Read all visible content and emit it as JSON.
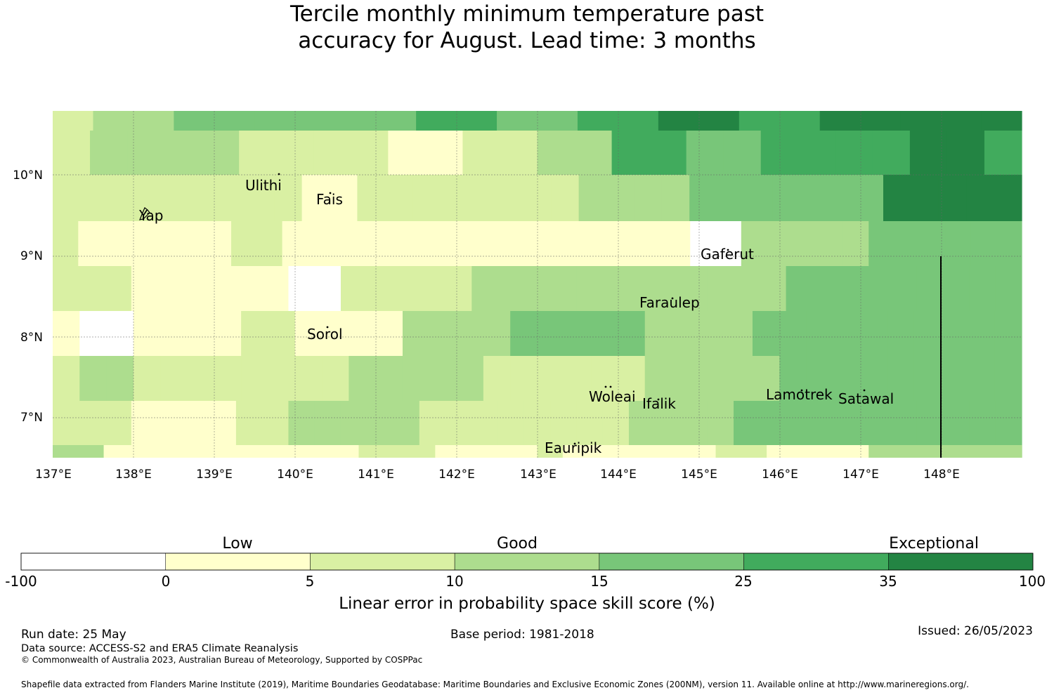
{
  "title": {
    "line1": "Tercile monthly minimum temperature past",
    "line2": "accuracy for August. Lead time: 3 months"
  },
  "map": {
    "lat_ticks": [
      "10°N",
      "9°N",
      "8°N",
      "7°N"
    ],
    "lon_ticks": [
      "137°E",
      "138°E",
      "139°E",
      "140°E",
      "141°E",
      "142°E",
      "143°E",
      "144°E",
      "145°E",
      "146°E",
      "147°E",
      "148°E"
    ],
    "places": [
      "Ulithi",
      "Fais",
      "Yap",
      "Gaferut",
      "Faraulep",
      "Sorol",
      "Woleai",
      "Ifalik",
      "Lamotrek",
      "Satawal",
      "Eauripik"
    ],
    "grid_levels": [
      [
        1,
        2,
        2,
        3,
        3,
        3,
        3,
        3,
        3,
        4,
        4,
        3,
        3,
        4,
        4,
        5,
        5,
        4,
        4,
        5,
        5,
        5,
        5,
        5
      ],
      [
        1,
        2,
        2,
        2,
        2,
        1,
        1,
        1,
        1,
        0,
        0,
        1,
        1,
        2,
        2,
        4,
        4,
        3,
        3,
        4,
        4,
        4,
        4,
        5,
        5,
        4
      ],
      [
        1,
        1,
        1,
        1,
        1,
        1,
        1,
        1,
        1,
        0,
        0,
        1,
        1,
        1,
        1,
        1,
        1,
        1,
        1,
        2,
        2,
        2,
        2,
        3,
        3,
        3,
        3,
        3,
        3,
        3,
        5,
        5,
        5,
        5,
        5
      ],
      [
        1,
        0,
        0,
        0,
        0,
        0,
        0,
        1,
        1,
        0,
        0,
        0,
        0,
        0,
        0,
        0,
        0,
        0,
        0,
        0,
        0,
        0,
        0,
        0,
        0,
        -1,
        -1,
        2,
        2,
        2,
        2,
        2,
        3,
        3,
        3,
        3,
        3,
        3
      ],
      [
        1,
        1,
        1,
        0,
        0,
        0,
        0,
        0,
        0,
        -1,
        -1,
        1,
        1,
        1,
        1,
        1,
        2,
        2,
        2,
        2,
        2,
        2,
        2,
        2,
        2,
        2,
        2,
        2,
        3,
        3,
        3,
        3,
        3,
        3,
        3,
        3,
        3
      ],
      [
        0,
        -1,
        -1,
        0,
        0,
        0,
        0,
        1,
        1,
        0,
        0,
        0,
        0,
        2,
        2,
        2,
        2,
        3,
        3,
        3,
        3,
        3,
        2,
        2,
        2,
        2,
        3,
        3,
        3,
        3,
        3,
        3,
        3,
        3,
        3,
        3
      ],
      [
        1,
        2,
        2,
        1,
        1,
        1,
        1,
        1,
        1,
        1,
        1,
        2,
        2,
        2,
        2,
        2,
        1,
        1,
        1,
        1,
        1,
        1,
        2,
        2,
        2,
        2,
        2,
        3,
        3,
        3,
        3,
        3,
        3,
        3,
        3,
        3
      ],
      [
        1,
        1,
        1,
        0,
        0,
        0,
        0,
        1,
        1,
        2,
        2,
        2,
        2,
        2,
        1,
        1,
        1,
        1,
        1,
        1,
        1,
        1,
        2,
        2,
        2,
        2,
        3,
        3,
        3,
        3,
        3,
        3,
        3,
        3,
        3,
        3,
        3
      ]
    ]
  },
  "colorbar": {
    "category_labels": [
      "Low",
      "Good",
      "Exceptional"
    ],
    "boundaries": [
      "-100",
      "0",
      "5",
      "10",
      "15",
      "25",
      "35",
      "100"
    ],
    "colors": [
      "#ffffff",
      "#ffffcc",
      "#d9f0a3",
      "#addd8e",
      "#78c679",
      "#41ab5d",
      "#238443"
    ],
    "label": "Linear error in probability space skill score (%)"
  },
  "footer": {
    "run_date": "Run date: 25 May",
    "base_period": "Base period: 1981-2018",
    "issued": "Issued: 26/05/2023",
    "data_source": "Data source: ACCESS-S2 and ERA5 Climate Reanalysis",
    "copyright": "© Commonwealth of Australia 2023, Australian Bureau of Meteorology, Supported by COSPPac",
    "shapefile": "Shapefile data extracted from Flanders Marine Institute (2019), Maritime Boundaries Geodatabase: Maritime Boundaries and Exclusive Economic Zones (200NM), version 11. Available online at http://www.marineregions.org/."
  }
}
